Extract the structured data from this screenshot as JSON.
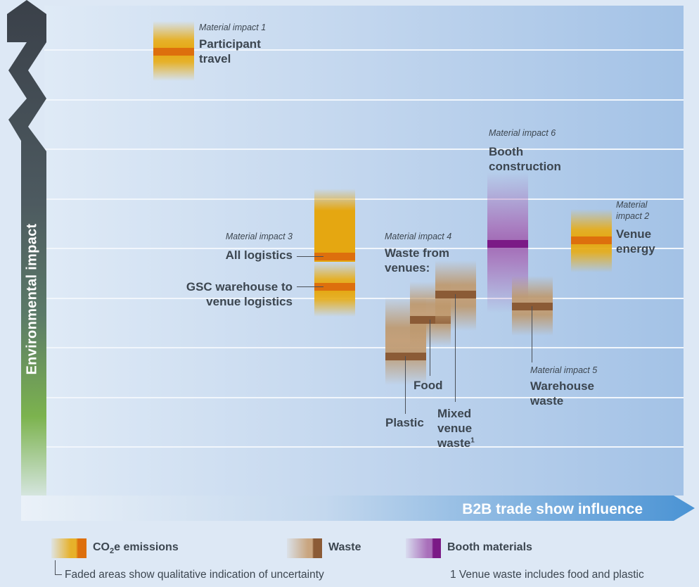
{
  "chart_data": {
    "type": "range-bar",
    "title": "",
    "xlabel": "B2B trade show influence",
    "ylabel": "Environmental impact",
    "axis_scale": "qualitative",
    "grid": true,
    "legend_placement": "bottom",
    "legend": [
      {
        "key": "emissions",
        "label_main": "CO",
        "label_sub": "2",
        "label_rest": "e emissions",
        "color_fill": "#e5a711",
        "color_mid": "#dd6f0d"
      },
      {
        "key": "waste",
        "label": "Waste",
        "color_fill": "#c4a07a",
        "color_mid": "#8b5b36"
      },
      {
        "key": "booth",
        "label": "Booth materials",
        "color_fill": "#a26ab5",
        "color_mid": "#7b1a86"
      }
    ],
    "items": [
      {
        "id": "participant-travel",
        "tag": "Material impact 1",
        "label": "Participant travel",
        "category": "emissions"
      },
      {
        "id": "venue-energy",
        "tag": "Material impact 2",
        "label": "Venue energy",
        "category": "emissions"
      },
      {
        "id": "all-logistics",
        "tag": "Material impact 3",
        "label": "All logistics",
        "category": "emissions"
      },
      {
        "id": "gsc-logistics",
        "label": "GSC warehouse to venue logistics",
        "category": "emissions"
      },
      {
        "id": "waste-from-venues",
        "tag": "Material impact 4",
        "label": "Waste from venues:",
        "category": "waste"
      },
      {
        "id": "plastic",
        "label": "Plastic",
        "category": "waste"
      },
      {
        "id": "food",
        "label": "Food",
        "category": "waste"
      },
      {
        "id": "mixed-venue-waste",
        "label": "Mixed venue waste",
        "footnote_mark": "1",
        "category": "waste"
      },
      {
        "id": "warehouse-waste",
        "tag": "Material impact 5",
        "label": "Warehouse waste",
        "category": "waste"
      },
      {
        "id": "booth-construction",
        "tag": "Material impact 6",
        "label": "Booth construction",
        "category": "booth"
      }
    ],
    "notes": {
      "faded_areas": "Faded areas show qualitative indication of uncertainty",
      "footnote_1": "1 Venue waste includes food and plastic"
    }
  },
  "colors": {
    "axis_gradient_top": "#3a4049",
    "axis_gradient_mid": "#59796a",
    "axis_gradient_bottom": "#84c14a",
    "x_axis_arrow": "#4a93d4",
    "emission_fill": "#e5a711",
    "emission_mid": "#dd6f0d",
    "waste_fill": "#c4a07a",
    "waste_mid": "#8b5b36",
    "booth_fill": "#a26ab5",
    "booth_mid": "#7b1a86"
  }
}
